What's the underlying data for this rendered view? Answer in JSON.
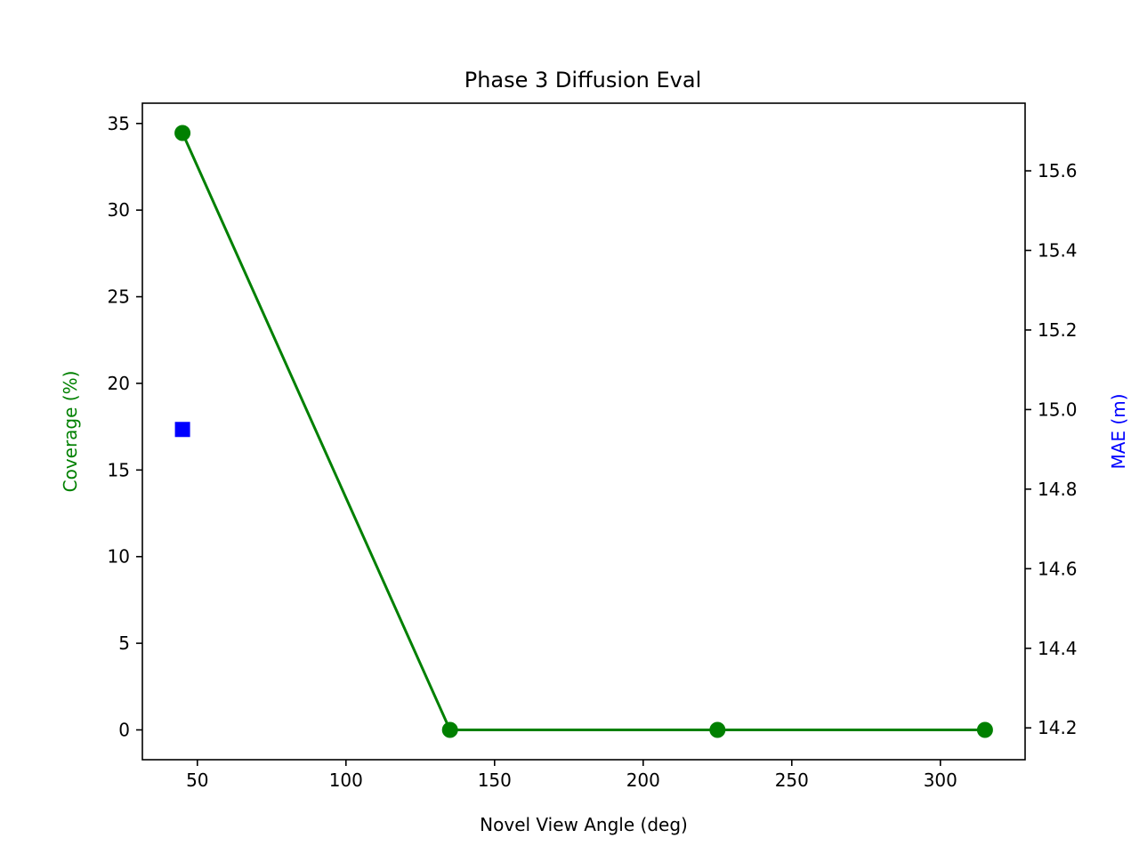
{
  "chart_data": {
    "type": "line",
    "title": "Phase 3 Diffusion Eval",
    "xlabel": "Novel View Angle (deg)",
    "ylabel_left": "Coverage (%)",
    "ylabel_right": "MAE (m)",
    "xlim": [
      31.5,
      328.5
    ],
    "ylim_left": [
      -1.72,
      36.17
    ],
    "ylim_right": [
      14.12,
      15.77
    ],
    "x_ticks": [
      50,
      100,
      150,
      200,
      250,
      300
    ],
    "y_left_ticks": [
      0,
      5,
      10,
      15,
      20,
      25,
      30,
      35
    ],
    "y_right_ticks": [
      14.2,
      14.4,
      14.6,
      14.8,
      15.0,
      15.2,
      15.4,
      15.6
    ],
    "grid": false,
    "series": [
      {
        "axis": "left",
        "style": "line-circle",
        "color": "#008000",
        "x": [
          45,
          135,
          225,
          315
        ],
        "y": [
          34.45,
          0,
          0,
          0
        ]
      },
      {
        "axis": "right",
        "style": "square",
        "color": "#0000ff",
        "x": [
          45
        ],
        "y": [
          14.95
        ]
      }
    ],
    "colors": {
      "left_axis_label": "#008000",
      "right_axis_label": "#0000ff"
    }
  }
}
